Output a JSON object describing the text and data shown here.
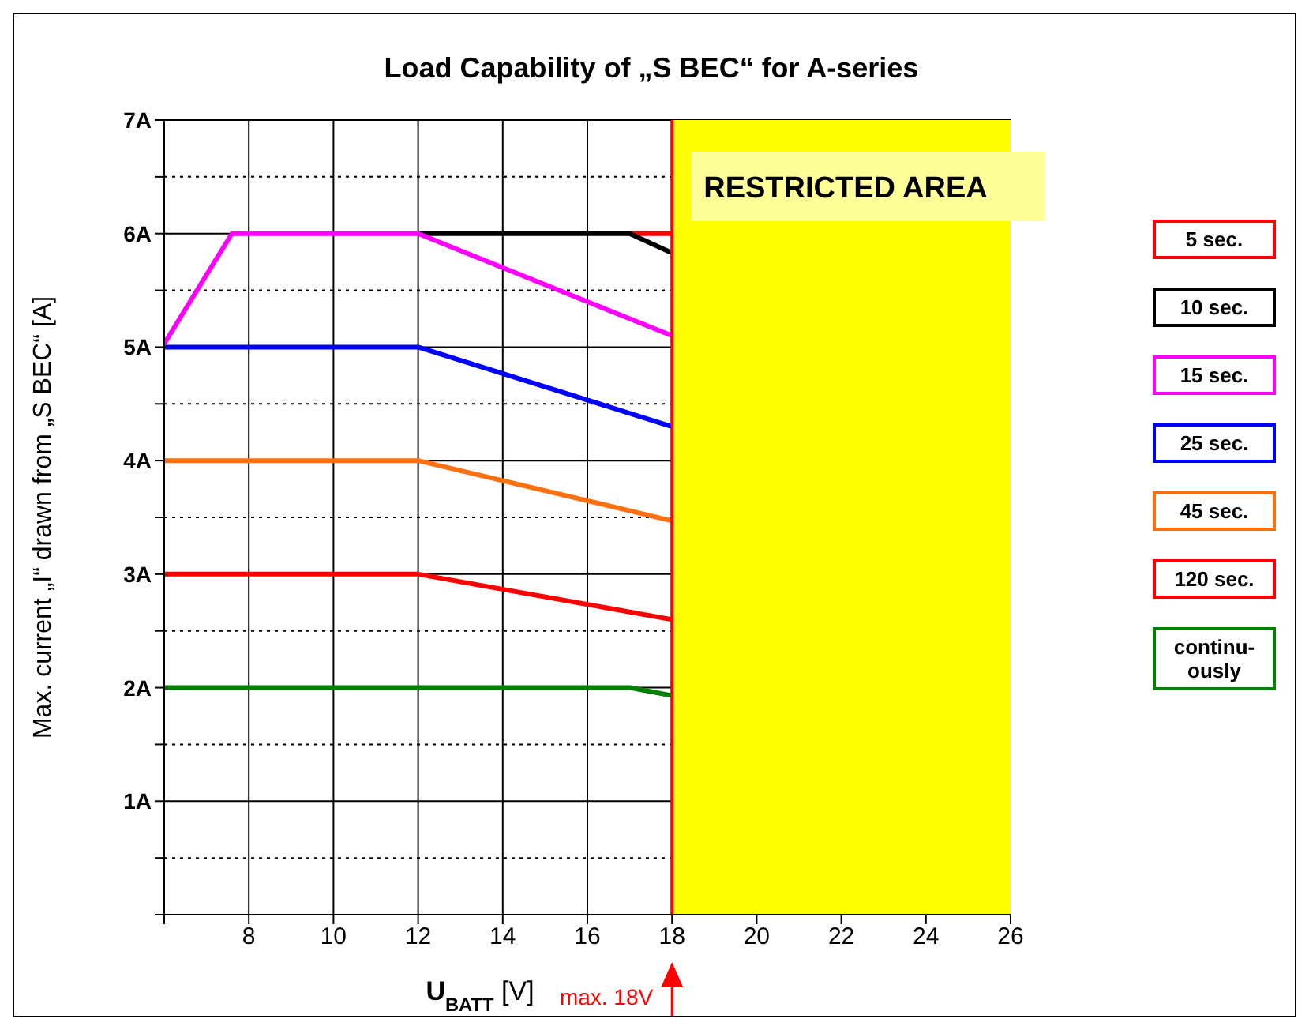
{
  "chart_data": {
    "type": "line",
    "title": "Load Capability of „S BEC“ for A-series",
    "xlabel": "U$_{BATT}$ [V]",
    "ylabel": "Max. current „I“ drawn from „S BEC“ [A]",
    "xlim": [
      6,
      26
    ],
    "xticks": [
      {
        "value": 6,
        "label": null
      },
      8,
      10,
      12,
      14,
      16,
      18,
      20,
      22,
      24,
      26
    ],
    "ylim": [
      0,
      7
    ],
    "yticks": [
      {
        "value": 0,
        "label": null
      },
      {
        "value": 0.5,
        "label": null
      },
      {
        "value": 1,
        "label": "1A"
      },
      {
        "value": 1.5,
        "label": null
      },
      {
        "value": 2,
        "label": "2A"
      },
      {
        "value": 2.5,
        "label": null
      },
      {
        "value": 3,
        "label": "3A"
      },
      {
        "value": 3.5,
        "label": null
      },
      {
        "value": 4,
        "label": "4A"
      },
      {
        "value": 4.5,
        "label": null
      },
      {
        "value": 5,
        "label": "5A"
      },
      {
        "value": 5.5,
        "label": null
      },
      {
        "value": 6,
        "label": "6A"
      },
      {
        "value": 6.5,
        "label": null
      },
      {
        "value": 7,
        "label": "7A"
      }
    ],
    "grid": true,
    "legend": "right",
    "marker": "none",
    "line_style": "solid",
    "series": [
      {
        "name": "5 sec.",
        "color": "#ff0000",
        "x": [
          17,
          18
        ],
        "values": [
          6,
          6
        ]
      },
      {
        "name": "10 sec.",
        "color": "#000000",
        "x": [
          12,
          17,
          18
        ],
        "values": [
          6,
          6,
          5.83
        ]
      },
      {
        "name": "15 sec.",
        "color": "#ff00ff",
        "x": [
          6,
          7.6,
          12,
          18
        ],
        "values": [
          5.03,
          6,
          6,
          5.1
        ]
      },
      {
        "name": "25 sec.",
        "color": "#0000ff",
        "x": [
          6,
          12,
          18
        ],
        "values": [
          5,
          5,
          4.3
        ]
      },
      {
        "name": "45 sec.",
        "color": "#ff7010",
        "x": [
          6,
          12,
          18
        ],
        "values": [
          4,
          4,
          3.47
        ]
      },
      {
        "name": "120 sec.",
        "color": "#ff0000",
        "x": [
          6,
          12,
          18
        ],
        "values": [
          3,
          3,
          2.6
        ]
      },
      {
        "name": "continu-ously",
        "color": "#008000",
        "x": [
          6,
          17,
          18
        ],
        "values": [
          2,
          2,
          1.93
        ]
      }
    ],
    "bands": [
      {
        "axis": "x",
        "from": 18,
        "to": 26,
        "label": "RESTRICTED AREA",
        "color": "#ffff00"
      }
    ],
    "ref_lines": [
      {
        "axis": "x",
        "value": 18,
        "label": "max. 18V",
        "color": "#ff0000",
        "line_style": "solid"
      }
    ]
  }
}
